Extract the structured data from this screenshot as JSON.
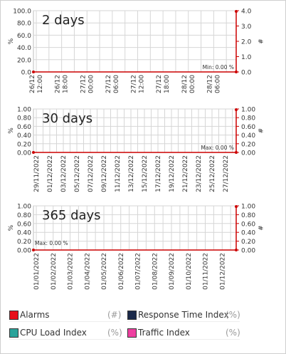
{
  "charts": [
    {
      "title": "2 days",
      "left_axis_label": "%",
      "right_axis_label": "#",
      "left_ticks": [
        "100.0",
        "80.0",
        "60.0",
        "40.0",
        "20.0",
        "0.0"
      ],
      "right_ticks": [
        "4.0",
        "3.0",
        "2.0",
        "1.0",
        "0.0"
      ],
      "x_ticks": [
        "26/12 12:00",
        "26/12 18:00",
        "27/12 00:00",
        "27/12 06:00",
        "27/12 12:00",
        "27/12 18:00",
        "28/12 00:00",
        "28/12 06:00"
      ],
      "annotation": "Min: 0.00 %",
      "annotation_side": "right"
    },
    {
      "title": "30 days",
      "left_axis_label": "%",
      "right_axis_label": "#",
      "left_ticks": [
        "1.00",
        "0.80",
        "0.60",
        "0.40",
        "0.20",
        "0.00"
      ],
      "right_ticks": [
        "1.00",
        "0.80",
        "0.60",
        "0.40",
        "0.20",
        "0.00"
      ],
      "x_ticks": [
        "29/11/2022",
        "01/12/2022",
        "03/12/2022",
        "05/12/2022",
        "07/12/2022",
        "09/12/2022",
        "11/12/2022",
        "13/12/2022",
        "15/12/2022",
        "17/12/2022",
        "19/12/2022",
        "21/12/2022",
        "23/12/2022",
        "25/12/2022",
        "27/12/2022"
      ],
      "annotation": "Max: 0.00 %",
      "annotation_side": "right"
    },
    {
      "title": "365 days",
      "left_axis_label": "%",
      "right_axis_label": "#",
      "left_ticks": [
        "1.00",
        "0.80",
        "0.60",
        "0.40",
        "0.20",
        "0.00"
      ],
      "right_ticks": [
        "1.00",
        "0.80",
        "0.60",
        "0.40",
        "0.20",
        "0.00"
      ],
      "x_ticks": [
        "01/01/2022",
        "01/02/2022",
        "01/03/2022",
        "01/04/2022",
        "01/05/2022",
        "01/06/2022",
        "01/07/2022",
        "01/08/2022",
        "01/09/2022",
        "01/10/2022",
        "01/11/2022",
        "01/12/2022"
      ],
      "annotation": "Max: 0.00 %",
      "annotation_side": "left"
    }
  ],
  "legend": [
    {
      "label": "Alarms",
      "unit": "(#)",
      "color": "#e8101a"
    },
    {
      "label": "Response Time Index",
      "unit": "(%)",
      "color": "#1c2a4a"
    },
    {
      "label": "CPU Load Index",
      "unit": "(%)",
      "color": "#2aa39a"
    },
    {
      "label": "Traffic Index",
      "unit": "(%)",
      "color": "#ee3fa0"
    }
  ],
  "colors": {
    "alarm_line": "#cc0000",
    "grid": "#d6d6d6",
    "frame": "#888888"
  }
}
